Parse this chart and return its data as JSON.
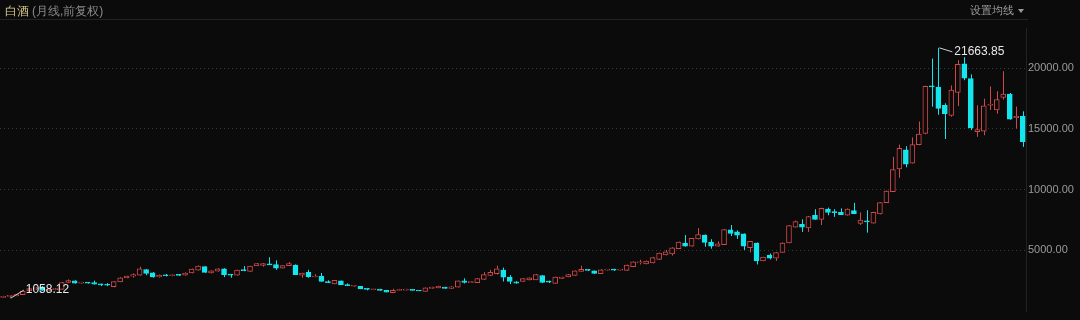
{
  "chart_data": {
    "type": "candlestick",
    "title": "白酒",
    "subtitle": "(月线,前复权)",
    "categories": [
      null,
      null,
      null,
      null,
      null,
      null,
      null,
      null,
      null,
      null,
      null,
      null,
      null,
      null,
      null,
      null,
      null,
      null,
      null,
      null,
      null,
      null,
      null,
      null,
      null,
      null,
      null,
      null,
      null,
      null,
      null,
      null,
      null,
      null,
      null,
      null,
      null,
      null,
      null,
      null,
      null,
      null,
      null,
      null,
      null,
      null,
      null,
      null,
      null,
      null,
      null,
      null,
      null,
      null,
      null,
      null,
      null,
      null,
      null,
      null,
      null,
      null,
      null,
      null,
      null,
      null,
      null,
      null,
      null,
      null,
      null,
      null,
      null,
      null,
      null,
      null,
      null,
      null,
      null,
      null,
      null,
      null,
      null,
      null,
      null,
      null,
      null,
      null,
      null,
      null,
      null,
      null,
      null,
      null,
      null,
      null,
      null,
      null,
      null,
      null,
      null,
      null,
      null,
      null,
      null,
      null,
      null,
      null,
      null,
      null,
      null,
      null,
      null,
      null,
      null,
      null,
      null,
      null,
      null,
      null,
      null,
      null,
      null,
      null,
      null,
      null,
      null,
      null,
      null,
      null,
      null,
      null,
      null,
      null,
      null,
      null,
      null,
      null,
      null,
      null,
      null,
      null,
      null,
      null,
      null,
      null,
      null,
      null,
      null,
      null,
      null,
      null,
      null,
      null,
      null,
      null,
      null,
      null
    ],
    "ohlc": [
      [
        1120,
        1250,
        1100,
        1200
      ],
      [
        1200,
        1300,
        1058.12,
        1250
      ],
      [
        1250,
        1400,
        1220,
        1350
      ],
      [
        1350,
        1700,
        1330,
        1650
      ],
      [
        1650,
        1900,
        1600,
        1850
      ],
      [
        1800,
        1950,
        1750,
        1900
      ],
      [
        2000,
        2050,
        1650,
        1700
      ],
      [
        1700,
        1800,
        1600,
        1750
      ],
      [
        1750,
        1900,
        1700,
        1850
      ],
      [
        1780,
        2380,
        1760,
        2350
      ],
      [
        2350,
        2600,
        2300,
        2510
      ],
      [
        2480,
        2520,
        2250,
        2300
      ],
      [
        2300,
        2400,
        2250,
        2350
      ],
      [
        2350,
        2380,
        2250,
        2300
      ],
      [
        2330,
        2500,
        2180,
        2210
      ],
      [
        2220,
        2250,
        2050,
        2150
      ],
      [
        2150,
        2300,
        2050,
        2120
      ],
      [
        2000,
        2450,
        1950,
        2420
      ],
      [
        2400,
        2780,
        2380,
        2740
      ],
      [
        2730,
        2900,
        2700,
        2870
      ],
      [
        2870,
        3100,
        2750,
        3000
      ],
      [
        2950,
        3650,
        2900,
        3470
      ],
      [
        3420,
        3450,
        2950,
        3100
      ],
      [
        3150,
        3200,
        2750,
        2800
      ],
      [
        2800,
        3000,
        2750,
        2950
      ],
      [
        2980,
        3050,
        2850,
        2900
      ],
      [
        2900,
        3000,
        2850,
        2950
      ],
      [
        2980,
        3050,
        2900,
        2930
      ],
      [
        2950,
        3180,
        2920,
        3130
      ],
      [
        3130,
        3500,
        3100,
        3460
      ],
      [
        3360,
        3750,
        3330,
        3700
      ],
      [
        3650,
        3680,
        3150,
        3180
      ],
      [
        3130,
        3350,
        3100,
        3310
      ],
      [
        3270,
        3520,
        3250,
        3470
      ],
      [
        3470,
        3520,
        2790,
        3000
      ],
      [
        3000,
        3050,
        2740,
        2960
      ],
      [
        2950,
        3400,
        2920,
        3360
      ],
      [
        3350,
        3700,
        3280,
        3320
      ],
      [
        3260,
        3720,
        3240,
        3700
      ],
      [
        3720,
        3950,
        3700,
        3900
      ],
      [
        3750,
        3950,
        3650,
        3900
      ],
      [
        3850,
        4430,
        3780,
        3800
      ],
      [
        3830,
        4170,
        3390,
        3520
      ],
      [
        3520,
        3780,
        3500,
        3730
      ],
      [
        3730,
        4040,
        3700,
        3900
      ],
      [
        3780,
        3840,
        2980,
        3000
      ],
      [
        2950,
        3150,
        2740,
        3130
      ],
      [
        3180,
        3390,
        2740,
        2820
      ],
      [
        2800,
        3030,
        2780,
        2880
      ],
      [
        2850,
        3130,
        2400,
        2430
      ],
      [
        2400,
        2530,
        2300,
        2330
      ],
      [
        2220,
        2560,
        2200,
        2530
      ],
      [
        2480,
        2500,
        2150,
        2170
      ],
      [
        2170,
        2270,
        2060,
        2090
      ],
      [
        2040,
        2120,
        2000,
        2090
      ],
      [
        2040,
        2060,
        1800,
        1810
      ],
      [
        1800,
        1850,
        1700,
        1780
      ],
      [
        1750,
        1800,
        1720,
        1770
      ],
      [
        1800,
        1820,
        1680,
        1700
      ],
      [
        1700,
        1720,
        1540,
        1550
      ],
      [
        1500,
        1830,
        1480,
        1700
      ],
      [
        1700,
        1830,
        1680,
        1720
      ],
      [
        1720,
        1830,
        1700,
        1760
      ],
      [
        1730,
        1760,
        1680,
        1700
      ],
      [
        1680,
        1700,
        1630,
        1650
      ],
      [
        1620,
        1930,
        1600,
        1900
      ],
      [
        1860,
        2000,
        1840,
        1960
      ],
      [
        1910,
        2080,
        1880,
        2040
      ],
      [
        1960,
        1980,
        1840,
        1860
      ],
      [
        1860,
        2050,
        1840,
        2000
      ],
      [
        1960,
        2500,
        1940,
        2480
      ],
      [
        2480,
        2690,
        2270,
        2350
      ],
      [
        2330,
        2450,
        2300,
        2400
      ],
      [
        2330,
        2690,
        2300,
        2660
      ],
      [
        2600,
        3200,
        2560,
        3000
      ],
      [
        2920,
        3390,
        2870,
        3180
      ],
      [
        3080,
        3730,
        3000,
        3470
      ],
      [
        3360,
        3570,
        2430,
        2790
      ],
      [
        2790,
        2950,
        2220,
        2430
      ],
      [
        2400,
        2450,
        2250,
        2300
      ],
      [
        2430,
        2700,
        2400,
        2660
      ],
      [
        2560,
        2780,
        2520,
        2740
      ],
      [
        2560,
        3050,
        2540,
        3000
      ],
      [
        2920,
        2950,
        2300,
        2350
      ],
      [
        2400,
        2500,
        2300,
        2380
      ],
      [
        2270,
        2820,
        2250,
        2790
      ],
      [
        2690,
        2820,
        2660,
        2790
      ],
      [
        2800,
        3050,
        2780,
        3000
      ],
      [
        2920,
        3340,
        2900,
        3310
      ],
      [
        3260,
        3730,
        3240,
        3440
      ],
      [
        3380,
        3420,
        3300,
        3350
      ],
      [
        3310,
        3330,
        3050,
        3100
      ],
      [
        3080,
        3450,
        3050,
        3390
      ],
      [
        3360,
        3450,
        3340,
        3400
      ],
      [
        3400,
        3470,
        3300,
        3360
      ],
      [
        3360,
        3440,
        3340,
        3400
      ],
      [
        3340,
        3820,
        3300,
        3780
      ],
      [
        3650,
        4080,
        3620,
        4040
      ],
      [
        3960,
        4220,
        3830,
        4040
      ],
      [
        3880,
        4150,
        3850,
        4120
      ],
      [
        3960,
        4450,
        3920,
        4400
      ],
      [
        4250,
        4800,
        4200,
        4770
      ],
      [
        4610,
        5030,
        4580,
        4870
      ],
      [
        4690,
        5250,
        4560,
        5210
      ],
      [
        5130,
        5720,
        5100,
        5680
      ],
      [
        5600,
        6250,
        5300,
        5340
      ],
      [
        5340,
        6020,
        5300,
        5990
      ],
      [
        5940,
        6820,
        5900,
        6300
      ],
      [
        6250,
        6300,
        5290,
        5650
      ],
      [
        5680,
        5910,
        5130,
        5340
      ],
      [
        5340,
        5730,
        5300,
        5520
      ],
      [
        5470,
        6750,
        5450,
        6710
      ],
      [
        6690,
        7080,
        6170,
        6380
      ],
      [
        6510,
        6640,
        5940,
        6250
      ],
      [
        6350,
        6380,
        5030,
        5340
      ],
      [
        5210,
        5760,
        4820,
        5730
      ],
      [
        5600,
        5640,
        3830,
        4120
      ],
      [
        4120,
        4460,
        4100,
        4430
      ],
      [
        4610,
        4740,
        4250,
        4350
      ],
      [
        4350,
        4850,
        4120,
        4820
      ],
      [
        4820,
        5650,
        4800,
        5600
      ],
      [
        5600,
        7060,
        5580,
        7030
      ],
      [
        6900,
        7450,
        6870,
        7360
      ],
      [
        7130,
        7550,
        6510,
        6900
      ],
      [
        6840,
        7820,
        6510,
        7780
      ],
      [
        7880,
        8380,
        7520,
        7550
      ],
      [
        7550,
        8500,
        7080,
        8450
      ],
      [
        8400,
        8510,
        7880,
        8120
      ],
      [
        8140,
        8380,
        7750,
        8100
      ],
      [
        8120,
        8450,
        7900,
        7940
      ],
      [
        7880,
        8440,
        7850,
        8400
      ],
      [
        8270,
        8900,
        7980,
        8010
      ],
      [
        7210,
        8120,
        7080,
        7490
      ],
      [
        7380,
        8300,
        6450,
        7340
      ],
      [
        7230,
        8160,
        7200,
        8120
      ],
      [
        7990,
        8950,
        7950,
        8920
      ],
      [
        8920,
        9920,
        8900,
        9880
      ],
      [
        9830,
        12690,
        9800,
        11650
      ],
      [
        11700,
        13700,
        10970,
        13390
      ],
      [
        13260,
        13570,
        11830,
        12090
      ],
      [
        12170,
        14290,
        12140,
        13700
      ],
      [
        13700,
        15600,
        13650,
        14560
      ],
      [
        14610,
        18550,
        14560,
        18500
      ],
      [
        18520,
        20780,
        16820,
        18450
      ],
      [
        18440,
        21663.85,
        16160,
        16680
      ],
      [
        16940,
        17100,
        14160,
        16240
      ],
      [
        16110,
        18570,
        16000,
        18180
      ],
      [
        18000,
        20650,
        16870,
        20310
      ],
      [
        20340,
        20900,
        19000,
        19170
      ],
      [
        19140,
        19480,
        14890,
        15070
      ],
      [
        14760,
        16940,
        14340,
        14940
      ],
      [
        14810,
        17480,
        14470,
        16890
      ],
      [
        16940,
        18490,
        16550,
        17020
      ],
      [
        16550,
        18100,
        16240,
        17400
      ],
      [
        17590,
        19740,
        17400,
        17850
      ],
      [
        17850,
        17950,
        15750,
        15800
      ],
      [
        15920,
        16830,
        15020,
        16030
      ],
      [
        16030,
        16440,
        13510,
        13950
      ]
    ],
    "ylim": [
      0,
      23250
    ],
    "yticks": [
      {
        "value": 5000,
        "label": "5000.00"
      },
      {
        "value": 10000,
        "label": "10000.00"
      },
      {
        "value": 15000,
        "label": "15000.00"
      },
      {
        "value": 20000,
        "label": "20000.00"
      }
    ],
    "grid": "y",
    "tick_labels": "y",
    "legend": false,
    "annotations": [
      "1058.12",
      "21663.85",
      "设置均线"
    ]
  }
}
